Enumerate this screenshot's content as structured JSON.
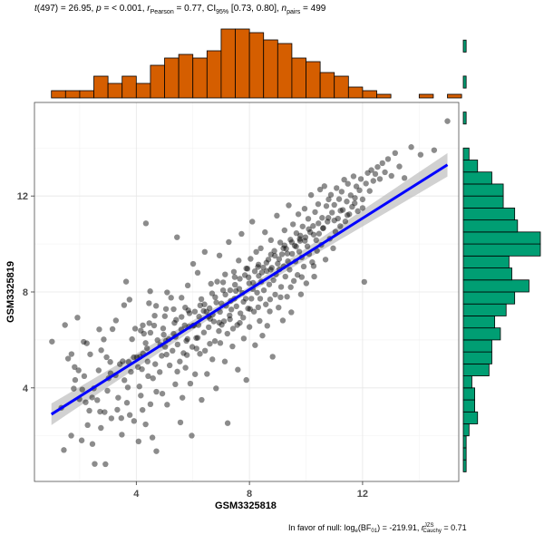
{
  "subtitle": {
    "t_label": "t",
    "t_df": "(497)",
    "t_value": " = 26.95, ",
    "p_label": "p",
    "p_value": " = < 0.001, ",
    "r_label": "r",
    "r_sub": "Pearson",
    "r_value": " = 0.77, CI",
    "ci_sub": "95%",
    "ci_value": " [0.73, 0.80], ",
    "n_label": "n",
    "n_sub": "pairs",
    "n_value": " = 499"
  },
  "caption": {
    "text": "In favor of null: log",
    "e_sub": "e",
    "bf_text": "(BF",
    "bf_sub": "01",
    "bf_value": ") = -219.91, ",
    "r_label": "r",
    "r_sup": "JZS",
    "r_sub": "Cauchy",
    "r_value": " = 0.71"
  },
  "chart_data": {
    "type": "scatter",
    "xlabel": "GSM3325818",
    "ylabel": "GSM3325819",
    "xlim": [
      0.4,
      15.4
    ],
    "ylim": [
      0.1,
      15.9
    ],
    "xticks": [
      4,
      8,
      12
    ],
    "yticks": [
      4,
      8,
      12
    ],
    "grid": true,
    "point_color": "#000000",
    "point_opacity": 0.45,
    "regression": {
      "x": [
        1.0,
        15.0
      ],
      "y": [
        2.9,
        13.3
      ],
      "color": "#0000ff",
      "band_color": "#bdbdbd"
    },
    "x_histogram": {
      "fill": "#d55e00",
      "bin_start": 1.0,
      "bin_width": 0.5,
      "counts": [
        2,
        2,
        2,
        6,
        4,
        6,
        4,
        9,
        11,
        12,
        11,
        13,
        19,
        19,
        18,
        16,
        15,
        11,
        10,
        7,
        6,
        3,
        2,
        1,
        0,
        0,
        1,
        0,
        1
      ]
    },
    "y_histogram": {
      "fill": "#009e73",
      "bin_start": 0.5,
      "bin_width": 0.5,
      "counts": [
        1,
        1,
        1,
        2,
        5,
        4,
        4,
        3,
        9,
        10,
        10,
        13,
        11,
        15,
        18,
        23,
        17,
        16,
        27,
        27,
        19,
        18,
        14,
        14,
        10,
        5,
        2,
        0,
        0,
        1,
        0,
        0,
        1,
        0,
        0,
        1
      ]
    },
    "points": [
      [
        1.02,
        5.93
      ],
      [
        1.44,
        1.41
      ],
      [
        1.48,
        6.62
      ],
      [
        1.59,
        5.22
      ],
      [
        1.7,
        2.01
      ],
      [
        1.71,
        5.41
      ],
      [
        1.79,
        3.97
      ],
      [
        1.82,
        4.87
      ],
      [
        1.92,
        6.93
      ],
      [
        1.96,
        4.73
      ],
      [
        1.99,
        3.53
      ],
      [
        2.07,
        1.81
      ],
      [
        2.09,
        3.93
      ],
      [
        2.14,
        5.92
      ],
      [
        2.16,
        4.49
      ],
      [
        2.21,
        3.4
      ],
      [
        2.25,
        5.86
      ],
      [
        2.34,
        3.05
      ],
      [
        2.37,
        5.4
      ],
      [
        2.44,
        3.6
      ],
      [
        2.45,
        1.66
      ],
      [
        2.5,
        3.98
      ],
      [
        2.53,
        0.83
      ],
      [
        2.67,
        4.73
      ],
      [
        2.69,
        6.44
      ],
      [
        2.72,
        3.01
      ],
      [
        2.75,
        2.33
      ],
      [
        2.76,
        5.57
      ],
      [
        2.85,
        6.02
      ],
      [
        2.88,
        2.99
      ],
      [
        2.91,
        0.82
      ],
      [
        2.95,
        5.28
      ],
      [
        3.02,
        4.4
      ],
      [
        3.08,
        5.08
      ],
      [
        3.09,
        4.61
      ],
      [
        3.12,
        2.73
      ],
      [
        3.16,
        6.45
      ],
      [
        3.27,
        4.53
      ],
      [
        3.28,
        6.81
      ],
      [
        3.36,
        3.59
      ],
      [
        3.42,
        4.99
      ],
      [
        3.47,
        2.74
      ],
      [
        3.49,
        2.05
      ],
      [
        3.52,
        5.11
      ],
      [
        3.57,
        7.45
      ],
      [
        3.58,
        4.32
      ],
      [
        3.64,
        8.43
      ],
      [
        3.67,
        3.38
      ],
      [
        3.73,
        5.08
      ],
      [
        3.76,
        7.68
      ],
      [
        3.77,
        2.87
      ],
      [
        3.81,
        4.67
      ],
      [
        3.91,
        5.28
      ],
      [
        3.92,
        2.62
      ],
      [
        3.96,
        6.47
      ],
      [
        4.02,
        5.27
      ],
      [
        4.08,
        1.77
      ],
      [
        4.11,
        4.06
      ],
      [
        4.13,
        5.3
      ],
      [
        4.16,
        3.68
      ],
      [
        4.16,
        6.39
      ],
      [
        4.2,
        4.78
      ],
      [
        4.22,
        3.08
      ],
      [
        4.24,
        5.43
      ],
      [
        4.27,
        6.26
      ],
      [
        4.33,
        5.87
      ],
      [
        4.33,
        2.48
      ],
      [
        4.34,
        10.86
      ],
      [
        4.4,
        5.1
      ],
      [
        4.42,
        4.49
      ],
      [
        4.45,
        7.53
      ],
      [
        4.49,
        8.03
      ],
      [
        4.5,
        3.32
      ],
      [
        4.5,
        6.3
      ],
      [
        4.57,
        1.93
      ],
      [
        4.59,
        4.4
      ],
      [
        4.63,
        6.6
      ],
      [
        4.7,
        7.42
      ],
      [
        4.71,
        1.36
      ],
      [
        4.71,
        3.84
      ],
      [
        4.75,
        5.99
      ],
      [
        4.83,
        4.66
      ],
      [
        4.85,
        5.79
      ],
      [
        4.92,
        3.76
      ],
      [
        4.95,
        6.48
      ],
      [
        4.97,
        6.22
      ],
      [
        5.01,
        6.99
      ],
      [
        5.05,
        7.29
      ],
      [
        5.07,
        5.39
      ],
      [
        5.09,
        3.3
      ],
      [
        5.09,
        7.98
      ],
      [
        5.18,
        4.94
      ],
      [
        5.23,
        7.76
      ],
      [
        5.28,
        5.55
      ],
      [
        5.32,
        6.26
      ],
      [
        5.32,
        7.28
      ],
      [
        5.38,
        4.15
      ],
      [
        5.39,
        6.13
      ],
      [
        5.44,
        10.28
      ],
      [
        5.45,
        4.68
      ],
      [
        5.46,
        5.81
      ],
      [
        5.54,
        5.1
      ],
      [
        5.56,
        2.56
      ],
      [
        5.6,
        6.96
      ],
      [
        5.63,
        3.59
      ],
      [
        5.67,
        5.45
      ],
      [
        5.71,
        6.61
      ],
      [
        5.73,
        7.35
      ],
      [
        5.74,
        4.84
      ],
      [
        5.79,
        5.37
      ],
      [
        5.81,
        6.04
      ],
      [
        5.82,
        8.27
      ],
      [
        5.87,
        6.55
      ],
      [
        5.88,
        7.11
      ],
      [
        5.91,
        4.18
      ],
      [
        5.96,
        2.01
      ],
      [
        5.98,
        5.71
      ],
      [
        6.01,
        9.17
      ],
      [
        6.04,
        6.61
      ],
      [
        6.07,
        7.18
      ],
      [
        6.08,
        4.57
      ],
      [
        6.13,
        5.64
      ],
      [
        6.17,
        6.09
      ],
      [
        6.17,
        8.8
      ],
      [
        6.2,
        6.62
      ],
      [
        6.25,
        5.42
      ],
      [
        6.3,
        7.7
      ],
      [
        6.31,
        3.5
      ],
      [
        6.38,
        7.21
      ],
      [
        6.39,
        6.31
      ],
      [
        6.42,
        9.67
      ],
      [
        6.43,
        5.55
      ],
      [
        6.48,
        7.18
      ],
      [
        6.5,
        4.58
      ],
      [
        6.56,
        6.53
      ],
      [
        6.59,
        7.32
      ],
      [
        6.6,
        5.84
      ],
      [
        6.64,
        8.34
      ],
      [
        6.69,
        5.19
      ],
      [
        6.7,
        7.05
      ],
      [
        6.74,
        6.77
      ],
      [
        6.78,
        5.95
      ],
      [
        6.82,
        3.98
      ],
      [
        6.83,
        7.56
      ],
      [
        6.86,
        8.43
      ],
      [
        6.92,
        6.37
      ],
      [
        6.94,
        9.52
      ],
      [
        6.97,
        5.87
      ],
      [
        7.01,
        7.52
      ],
      [
        7.02,
        6.63
      ],
      [
        7.07,
        8.07
      ],
      [
        7.1,
        6.78
      ],
      [
        7.13,
        5.1
      ],
      [
        7.14,
        8.73
      ],
      [
        7.18,
        7.42
      ],
      [
        7.22,
        6.26
      ],
      [
        7.23,
        2.53
      ],
      [
        7.27,
        10.08
      ],
      [
        7.31,
        6.86
      ],
      [
        7.32,
        8.07
      ],
      [
        7.36,
        7.27
      ],
      [
        7.4,
        5.73
      ],
      [
        7.42,
        6.47
      ],
      [
        7.45,
        8.84
      ],
      [
        7.47,
        7.72
      ],
      [
        7.52,
        8.04
      ],
      [
        7.54,
        7.4
      ],
      [
        7.57,
        6.62
      ],
      [
        7.59,
        4.76
      ],
      [
        7.62,
        9.31
      ],
      [
        7.66,
        8.55
      ],
      [
        7.68,
        7.11
      ],
      [
        7.72,
        10.42
      ],
      [
        7.75,
        7.96
      ],
      [
        7.78,
        6.93
      ],
      [
        7.8,
        6.06
      ],
      [
        7.84,
        8.7
      ],
      [
        7.87,
        7.72
      ],
      [
        7.89,
        4.33
      ],
      [
        7.93,
        8.97
      ],
      [
        7.95,
        7.31
      ],
      [
        7.99,
        8.36
      ],
      [
        8.0,
        6.54
      ],
      [
        8.04,
        9.38
      ],
      [
        8.07,
        7.72
      ],
      [
        8.1,
        10.93
      ],
      [
        8.12,
        8.12
      ],
      [
        8.16,
        7.18
      ],
      [
        8.19,
        8.86
      ],
      [
        8.2,
        5.78
      ],
      [
        8.24,
        9.67
      ],
      [
        8.27,
        7.97
      ],
      [
        8.31,
        7.36
      ],
      [
        8.33,
        8.67
      ],
      [
        8.36,
        6.79
      ],
      [
        8.4,
        9.82
      ],
      [
        8.42,
        8.43
      ],
      [
        8.46,
        6.18
      ],
      [
        8.49,
        9.02
      ],
      [
        8.51,
        8.07
      ],
      [
        8.55,
        10.49
      ],
      [
        8.58,
        7.48
      ],
      [
        8.61,
        8.87
      ],
      [
        8.63,
        6.59
      ],
      [
        8.67,
        9.35
      ],
      [
        8.7,
        8.31
      ],
      [
        8.73,
        7.69
      ],
      [
        8.76,
        10.16
      ],
      [
        8.79,
        9.01
      ],
      [
        8.82,
        5.3
      ],
      [
        8.85,
        8.49
      ],
      [
        8.88,
        9.71
      ],
      [
        8.91,
        7.89
      ],
      [
        8.94,
        8.73
      ],
      [
        8.97,
        11.18
      ],
      [
        9.0,
        9.18
      ],
      [
        9.03,
        7.35
      ],
      [
        9.06,
        8.94
      ],
      [
        9.09,
        10.06
      ],
      [
        9.12,
        8.21
      ],
      [
        9.15,
        9.57
      ],
      [
        9.18,
        6.81
      ],
      [
        9.21,
        9.07
      ],
      [
        9.24,
        10.57
      ],
      [
        9.27,
        8.64
      ],
      [
        9.3,
        9.8
      ],
      [
        9.33,
        7.8
      ],
      [
        9.36,
        9.28
      ],
      [
        9.39,
        11.61
      ],
      [
        9.42,
        8.93
      ],
      [
        9.45,
        10.18
      ],
      [
        9.48,
        7.15
      ],
      [
        9.51,
        9.59
      ],
      [
        9.54,
        10.82
      ],
      [
        9.57,
        8.46
      ],
      [
        9.6,
        9.93
      ],
      [
        9.63,
        9.27
      ],
      [
        9.66,
        10.45
      ],
      [
        9.7,
        8.71
      ],
      [
        9.73,
        11.24
      ],
      [
        9.76,
        9.68
      ],
      [
        9.79,
        10.13
      ],
      [
        9.82,
        7.9
      ],
      [
        9.85,
        9.44
      ],
      [
        9.88,
        10.73
      ],
      [
        9.92,
        9.06
      ],
      [
        9.95,
        11.47
      ],
      [
        9.98,
        10.28
      ],
      [
        10.01,
        8.36
      ],
      [
        10.05,
        9.9
      ],
      [
        10.08,
        11.05
      ],
      [
        10.11,
        9.58
      ],
      [
        10.15,
        10.49
      ],
      [
        10.18,
        12.04
      ],
      [
        10.22,
        9.24
      ],
      [
        10.25,
        10.75
      ],
      [
        10.29,
        8.64
      ],
      [
        10.32,
        11.33
      ],
      [
        10.36,
        10.16
      ],
      [
        10.39,
        9.71
      ],
      [
        10.43,
        11.66
      ],
      [
        10.46,
        10.43
      ],
      [
        10.5,
        12.27
      ],
      [
        10.54,
        9.96
      ],
      [
        10.57,
        11.09
      ],
      [
        10.61,
        10.67
      ],
      [
        10.65,
        12.41
      ],
      [
        10.69,
        9.35
      ],
      [
        10.72,
        11.58
      ],
      [
        10.76,
        10.93
      ],
      [
        10.8,
        11.86
      ],
      [
        10.84,
        10.22
      ],
      [
        10.88,
        12.05
      ],
      [
        10.92,
        11.31
      ],
      [
        10.96,
        9.82
      ],
      [
        11.0,
        11.63
      ],
      [
        11.04,
        10.51
      ],
      [
        11.08,
        12.33
      ],
      [
        11.13,
        11.06
      ],
      [
        11.17,
        11.87
      ],
      [
        11.21,
        10.74
      ],
      [
        11.26,
        12.18
      ],
      [
        11.3,
        11.42
      ],
      [
        11.35,
        12.68
      ],
      [
        11.39,
        10.94
      ],
      [
        11.44,
        11.77
      ],
      [
        11.48,
        12.51
      ],
      [
        11.53,
        11.24
      ],
      [
        11.58,
        12.03
      ],
      [
        11.63,
        11.55
      ],
      [
        11.68,
        12.82
      ],
      [
        11.73,
        11.92
      ],
      [
        11.78,
        12.4
      ],
      [
        11.83,
        11.37
      ],
      [
        11.89,
        12.24
      ],
      [
        11.94,
        12.71
      ],
      [
        12.0,
        11.86
      ],
      [
        12.06,
        8.42
      ],
      [
        12.12,
        12.52
      ],
      [
        12.18,
        12.96
      ],
      [
        12.25,
        12.21
      ],
      [
        12.31,
        13.08
      ],
      [
        12.38,
        12.63
      ],
      [
        12.45,
        12.92
      ],
      [
        12.53,
        13.21
      ],
      [
        12.61,
        12.71
      ],
      [
        12.7,
        13.37
      ],
      [
        12.79,
        12.99
      ],
      [
        12.9,
        13.54
      ],
      [
        13.02,
        12.84
      ],
      [
        13.15,
        13.79
      ],
      [
        13.3,
        13.23
      ],
      [
        13.48,
        12.75
      ],
      [
        13.72,
        14.04
      ],
      [
        14.05,
        13.72
      ],
      [
        14.53,
        13.91
      ],
      [
        15.0,
        15.12
      ],
      [
        1.35,
        3.17
      ],
      [
        1.84,
        4.33
      ],
      [
        2.28,
        2.45
      ],
      [
        2.62,
        3.49
      ],
      [
        2.98,
        3.88
      ],
      [
        3.33,
        3.09
      ],
      [
        3.7,
        4.02
      ],
      [
        4.06,
        4.87
      ],
      [
        4.38,
        5.65
      ],
      [
        4.67,
        4.99
      ],
      [
        4.9,
        5.34
      ],
      [
        5.15,
        6.03
      ],
      [
        5.35,
        6.71
      ],
      [
        5.59,
        6.44
      ],
      [
        5.77,
        5.96
      ],
      [
        6.0,
        6.59
      ],
      [
        6.22,
        6.97
      ],
      [
        6.41,
        7.48
      ],
      [
        6.61,
        6.88
      ],
      [
        6.79,
        7.78
      ],
      [
        6.96,
        7.17
      ],
      [
        7.15,
        7.89
      ],
      [
        7.34,
        7.63
      ],
      [
        7.49,
        8.3
      ],
      [
        7.64,
        8.13
      ],
      [
        7.79,
        7.59
      ],
      [
        7.97,
        8.61
      ],
      [
        8.13,
        8.38
      ],
      [
        8.3,
        9.04
      ],
      [
        8.44,
        8.81
      ],
      [
        8.6,
        9.22
      ],
      [
        8.75,
        8.93
      ],
      [
        8.9,
        9.51
      ],
      [
        9.05,
        9.37
      ],
      [
        9.2,
        9.82
      ],
      [
        9.34,
        9.6
      ],
      [
        9.5,
        10.07
      ],
      [
        9.65,
        9.89
      ],
      [
        9.8,
        10.35
      ],
      [
        9.96,
        10.13
      ],
      [
        10.1,
        10.62
      ],
      [
        10.27,
        10.39
      ],
      [
        10.44,
        10.86
      ],
      [
        10.6,
        10.65
      ],
      [
        10.79,
        11.09
      ],
      [
        11.0,
        10.98
      ],
      [
        11.22,
        11.39
      ],
      [
        11.46,
        11.2
      ],
      [
        11.72,
        11.7
      ],
      [
        12.0,
        11.5
      ],
      [
        4.46,
        6.7
      ],
      [
        5.05,
        5.96
      ],
      [
        5.6,
        7.76
      ],
      [
        6.12,
        6.08
      ],
      [
        6.55,
        6.97
      ],
      [
        6.93,
        6.72
      ],
      [
        7.3,
        7.02
      ],
      [
        7.66,
        6.71
      ],
      [
        8.02,
        7.29
      ],
      [
        8.38,
        7.72
      ],
      [
        8.72,
        7.19
      ],
      [
        9.1,
        7.78
      ],
      [
        9.46,
        8.2
      ],
      [
        9.85,
        8.62
      ],
      [
        10.27,
        9.08
      ],
      [
        3.85,
        6.03
      ],
      [
        4.23,
        6.61
      ],
      [
        4.65,
        7.01
      ],
      [
        5.02,
        5.71
      ],
      [
        5.41,
        6.84
      ],
      [
        5.84,
        7.23
      ],
      [
        6.26,
        7.44
      ],
      [
        6.68,
        7.94
      ],
      [
        7.07,
        8.4
      ],
      [
        7.48,
        8.62
      ],
      [
        7.89,
        8.98
      ],
      [
        8.32,
        9.14
      ],
      [
        8.76,
        9.56
      ],
      [
        9.24,
        9.94
      ],
      [
        9.78,
        10.21
      ]
    ]
  }
}
